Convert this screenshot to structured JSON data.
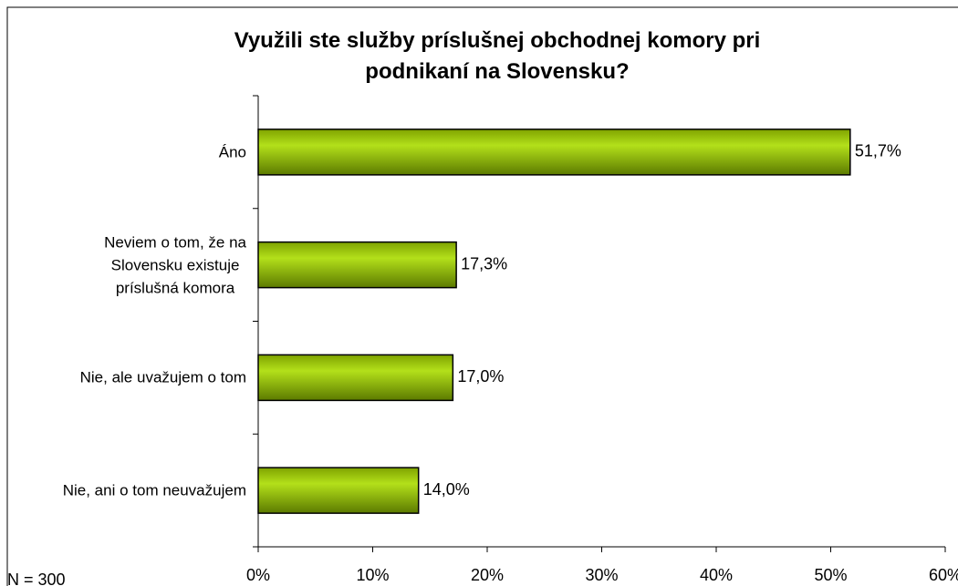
{
  "chart_data": {
    "type": "bar",
    "orientation": "horizontal",
    "title": "Využili ste služby príslušnej obchodnej komory pri\npodnikaní na Slovensku?",
    "categories": [
      "Áno",
      "Neviem o tom, že na\nSlovensku existuje\npríslušná komora",
      "Nie, ale uvažujem o tom",
      "Nie, ani o tom neuvažujem"
    ],
    "values": [
      51.7,
      17.3,
      17.0,
      14.0
    ],
    "value_labels": [
      "51,7%",
      "17,3%",
      "17,0%",
      "14,0%"
    ],
    "color": "#99cc00",
    "xlim": [
      0,
      60
    ],
    "xticks": [
      {
        "value": 0,
        "label": "0%"
      },
      {
        "value": 10,
        "label": "10%"
      },
      {
        "value": 20,
        "label": "20%"
      },
      {
        "value": 30,
        "label": "30%"
      },
      {
        "value": 40,
        "label": "40%"
      },
      {
        "value": 50,
        "label": "50%"
      },
      {
        "value": 60,
        "label": "60%"
      }
    ],
    "grid": false,
    "note": "N = 300"
  }
}
